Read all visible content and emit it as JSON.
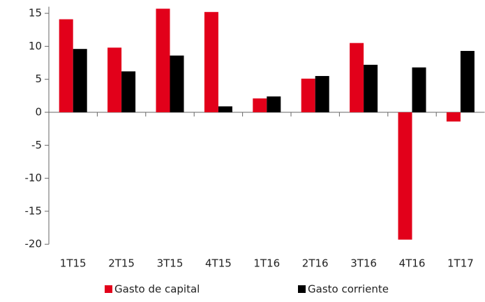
{
  "chart_data": {
    "type": "bar",
    "categories": [
      "1T15",
      "2T15",
      "3T15",
      "4T15",
      "1T16",
      "2T16",
      "3T16",
      "4T16",
      "1T17"
    ],
    "series": [
      {
        "name": "Gasto de capital",
        "color": "#e2001a",
        "values": [
          14.1,
          9.8,
          15.7,
          15.2,
          2.1,
          5.1,
          10.5,
          -19.3,
          -1.4
        ]
      },
      {
        "name": "Gasto corriente",
        "color": "#000000",
        "values": [
          9.6,
          6.2,
          8.6,
          0.9,
          2.4,
          5.5,
          7.2,
          6.8,
          9.3
        ]
      }
    ],
    "ylim": [
      -20,
      16
    ],
    "yticks": [
      -20,
      -15,
      -10,
      -5,
      0,
      5,
      10,
      15
    ],
    "grid": false,
    "legend": "bottom"
  }
}
